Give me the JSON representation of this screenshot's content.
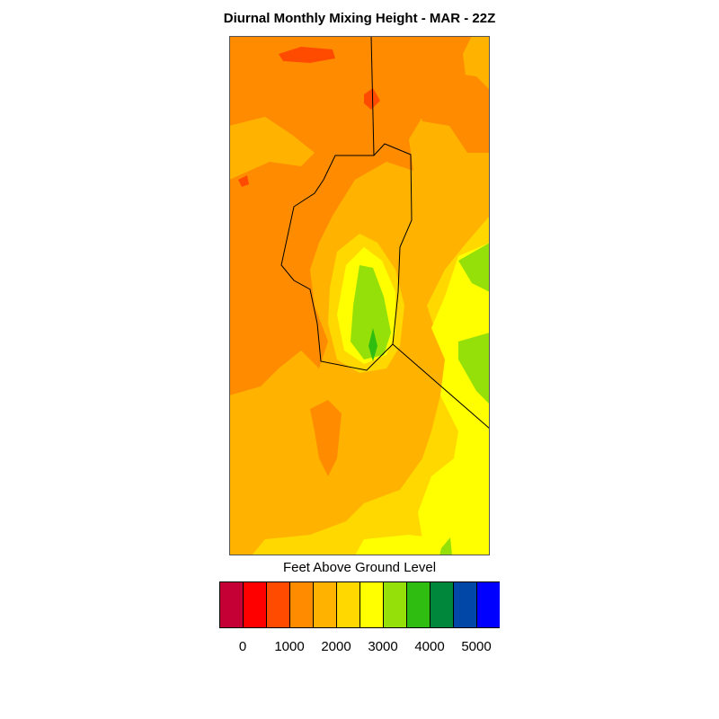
{
  "title": "Diurnal Monthly Mixing Height - MAR - 22Z",
  "legend": {
    "title": "Feet Above Ground Level",
    "bins": [
      {
        "color": "#c40034"
      },
      {
        "color": "#ff0000"
      },
      {
        "color": "#ff4b00"
      },
      {
        "color": "#ff8c00"
      },
      {
        "color": "#ffb300"
      },
      {
        "color": "#ffd800"
      },
      {
        "color": "#ffff00"
      },
      {
        "color": "#96e00a"
      },
      {
        "color": "#2fbd12"
      },
      {
        "color": "#00873c"
      },
      {
        "color": "#0047a8"
      },
      {
        "color": "#0000ff"
      }
    ],
    "tick_labels": [
      "0",
      "1000",
      "2000",
      "3000",
      "4000",
      "5000"
    ]
  },
  "map": {
    "field": "mixing height",
    "units": "Feet Above Ground Level",
    "month": "MAR",
    "hour": "22Z",
    "dominant_levels": [
      "1500-2000",
      "2000-2500",
      "2500-3000",
      "3000-3500",
      "3500-4000"
    ]
  }
}
